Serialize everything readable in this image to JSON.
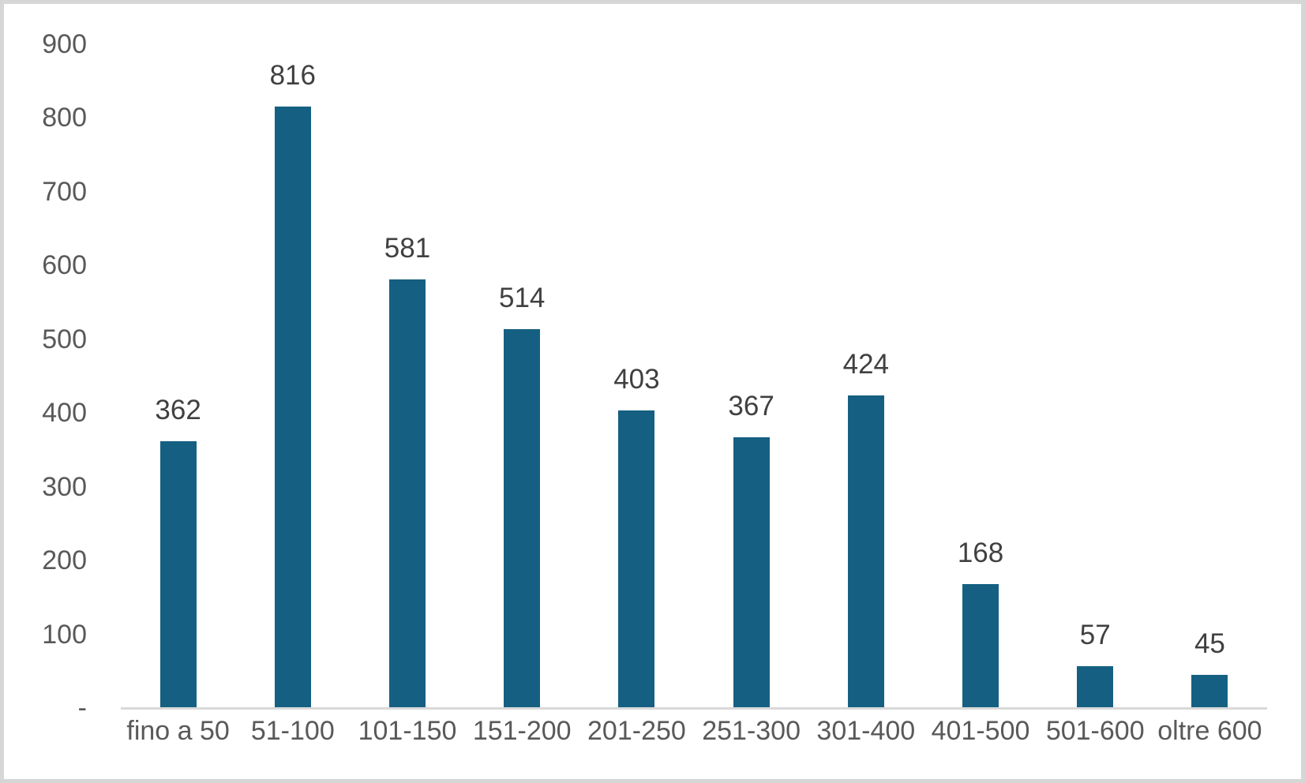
{
  "chart_data": {
    "type": "bar",
    "title": "",
    "xlabel": "",
    "ylabel": "",
    "categories": [
      "fino a 50",
      "51-100",
      "101-150",
      "151-200",
      "201-250",
      "251-300",
      "301-400",
      "401-500",
      "501-600",
      "oltre 600"
    ],
    "values": [
      362,
      816,
      581,
      514,
      403,
      367,
      424,
      168,
      57,
      45
    ],
    "data_labels": [
      "362",
      "816",
      "581",
      "514",
      "403",
      "367",
      "424",
      "168",
      "57",
      "45"
    ],
    "ylim": [
      0,
      900
    ],
    "y_tick_values": [
      0,
      100,
      200,
      300,
      400,
      500,
      600,
      700,
      800,
      900
    ],
    "y_tick_labels": [
      "-",
      "100",
      "200",
      "300",
      "400",
      "500",
      "600",
      "700",
      "800",
      "900"
    ],
    "grid": false,
    "legend_position": "none",
    "colors": {
      "bar": "#156082",
      "data_label": "#404040",
      "axis_label": "#595959",
      "axis_line": "#D9D9D9",
      "background": "#FFFFFF",
      "border": "#D6D6D6"
    }
  }
}
